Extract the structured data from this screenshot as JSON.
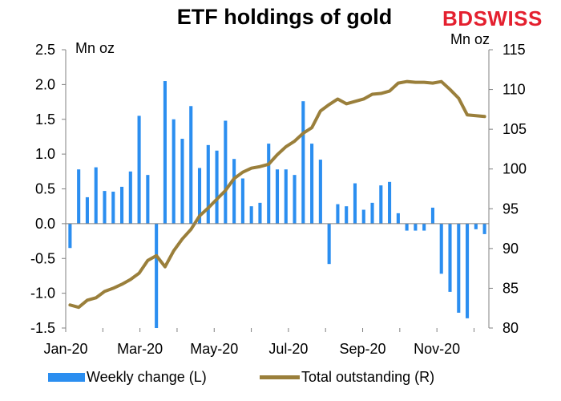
{
  "title": "ETF holdings of gold",
  "brand": {
    "part1": "BD",
    "part2": "SWISS"
  },
  "colors": {
    "bar": "#2b8ef0",
    "line": "#9a7f3b",
    "axis": "#808080",
    "brand": "#e4202f"
  },
  "chart_data": {
    "type": "bar+line",
    "title": "ETF holdings of gold",
    "left_axis": {
      "unit": "Mn oz",
      "range": [
        -1.5,
        2.5
      ],
      "ticks": [
        "2.5",
        "2.0",
        "1.5",
        "1.0",
        "0.5",
        "0.0",
        "-0.5",
        "-1.0",
        "-1.5"
      ]
    },
    "right_axis": {
      "unit": "Mn oz",
      "range": [
        80,
        115
      ],
      "ticks": [
        "115",
        "110",
        "105",
        "100",
        "95",
        "90",
        "85",
        "80"
      ]
    },
    "x_tick_labels": [
      "Jan-20",
      "Mar-20",
      "May-20",
      "Jul-20",
      "Sep-20",
      "Nov-20"
    ],
    "grid": false,
    "legend_position": "bottom",
    "series": [
      {
        "name": "Weekly change (L)",
        "type": "bar",
        "axis": "left",
        "values": [
          -0.35,
          0.78,
          0.38,
          0.81,
          0.47,
          0.46,
          0.53,
          0.75,
          1.55,
          0.7,
          -1.5,
          2.05,
          1.5,
          1.22,
          1.69,
          0.8,
          1.13,
          1.05,
          1.48,
          0.93,
          0.65,
          0.25,
          0.3,
          1.15,
          0.78,
          0.78,
          0.7,
          1.76,
          1.15,
          0.92,
          -0.58,
          0.28,
          0.25,
          0.58,
          0.2,
          0.3,
          0.55,
          0.6,
          0.15,
          -0.1,
          -0.1,
          -0.1,
          0.23,
          -0.72,
          -0.98,
          -1.28,
          -1.36,
          -0.08,
          -0.15
        ]
      },
      {
        "name": "Total outstanding (R)",
        "type": "line",
        "axis": "right",
        "values": [
          82.9,
          82.6,
          83.5,
          83.8,
          84.6,
          85.0,
          85.5,
          86.1,
          86.9,
          88.5,
          89.1,
          87.7,
          89.7,
          91.2,
          92.4,
          94.1,
          95.1,
          96.2,
          97.3,
          98.8,
          99.6,
          100.1,
          100.3,
          100.6,
          101.8,
          102.8,
          103.5,
          104.5,
          105.2,
          107.3,
          108.1,
          108.8,
          108.2,
          108.5,
          108.8,
          109.4,
          109.5,
          109.8,
          110.8,
          111.0,
          110.9,
          110.9,
          110.8,
          111.0,
          110.0,
          108.9,
          106.8,
          106.7,
          106.6
        ]
      }
    ]
  }
}
